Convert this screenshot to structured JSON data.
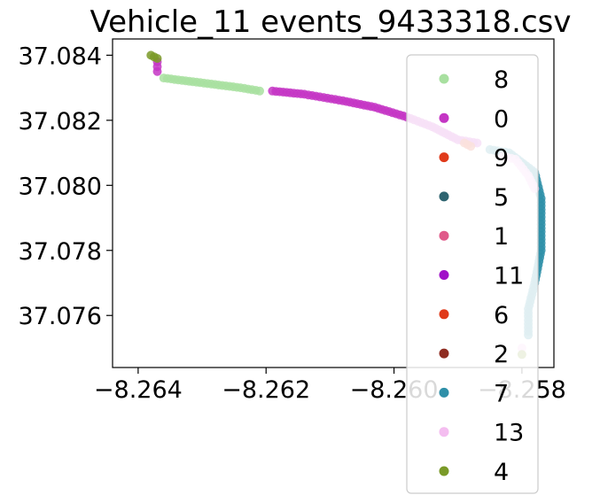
{
  "chart_data": {
    "type": "scatter",
    "title": "Vehicle_11 events_9433318.csv",
    "xlabel": "",
    "ylabel": "",
    "xlim": [
      -8.2644,
      -8.2575
    ],
    "ylim": [
      37.0744,
      37.0845
    ],
    "x_ticks": [
      -8.264,
      -8.262,
      -8.26,
      -8.258
    ],
    "x_tick_labels": [
      "−8.264",
      "−8.262",
      "−8.260",
      "−8.258"
    ],
    "y_ticks": [
      37.076,
      37.078,
      37.08,
      37.082,
      37.084
    ],
    "y_tick_labels": [
      "37.076",
      "37.078",
      "37.080",
      "37.082",
      "37.084"
    ],
    "grid": false,
    "legend_position": "right",
    "series": [
      {
        "name": "8",
        "color": "#a8e0a0",
        "points": [
          [
            -8.2636,
            37.0833
          ],
          [
            -8.2632,
            37.0832
          ],
          [
            -8.2628,
            37.0831
          ],
          [
            -8.2624,
            37.083
          ],
          [
            -8.2621,
            37.0829
          ]
        ]
      },
      {
        "name": "0",
        "color": "#c435c4",
        "points": [
          [
            -8.2637,
            37.0838
          ],
          [
            -8.2637,
            37.0835
          ],
          [
            -8.2619,
            37.0829
          ],
          [
            -8.2614,
            37.0828
          ],
          [
            -8.2608,
            37.0826
          ],
          [
            -8.2603,
            37.0824
          ],
          [
            -8.2598,
            37.0821
          ],
          [
            -8.2594,
            37.0818
          ],
          [
            -8.259,
            37.0814
          ],
          [
            -8.2587,
            37.0813
          ]
        ]
      },
      {
        "name": "9",
        "color": "#e03a1a",
        "points": [
          [
            -8.2589,
            37.0813
          ],
          [
            -8.2588,
            37.0812
          ]
        ]
      },
      {
        "name": "5",
        "color": "#2e6470",
        "points": []
      },
      {
        "name": "1",
        "color": "#e05a8a",
        "points": []
      },
      {
        "name": "11",
        "color": "#a010c8",
        "points": []
      },
      {
        "name": "6",
        "color": "#e03a1a",
        "points": []
      },
      {
        "name": "2",
        "color": "#8f2d22",
        "points": []
      },
      {
        "name": "7",
        "color": "#2e8fa8",
        "points": [
          [
            -8.2585,
            37.0811
          ],
          [
            -8.2582,
            37.081
          ],
          [
            -8.2578,
            37.0804
          ],
          [
            -8.2577,
            37.0796
          ],
          [
            -8.2577,
            37.0788
          ],
          [
            -8.2577,
            37.078
          ],
          [
            -8.2578,
            37.077
          ],
          [
            -8.2579,
            37.0762
          ],
          [
            -8.2579,
            37.0754
          ]
        ]
      },
      {
        "name": "13",
        "color": "#f4bdf0",
        "points": [
          [
            -8.2583,
            37.0809
          ],
          [
            -8.2581,
            37.0808
          ],
          [
            -8.2579,
            37.0803
          ],
          [
            -8.2578,
            37.0799
          ],
          [
            -8.258,
            37.075
          ]
        ]
      },
      {
        "name": "4",
        "color": "#7a9a28",
        "points": [
          [
            -8.2638,
            37.084
          ],
          [
            -8.2637,
            37.0839
          ],
          [
            -8.258,
            37.0748
          ]
        ]
      }
    ]
  }
}
